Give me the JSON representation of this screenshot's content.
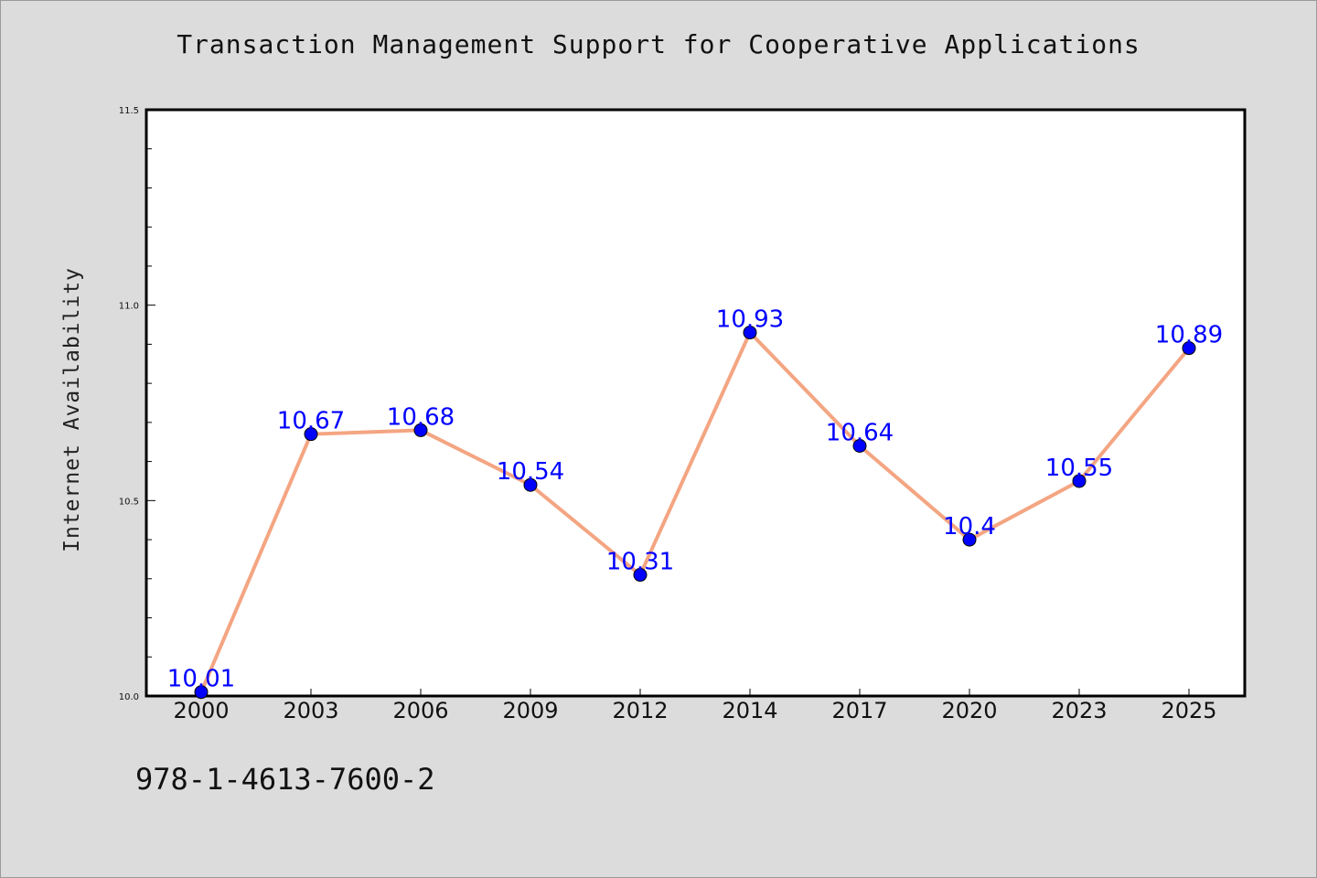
{
  "page": {
    "footer_text": "978-1-4613-7600-2"
  },
  "chart_data": {
    "type": "line",
    "title": "Transaction Management Support for Cooperative Applications",
    "xlabel": "",
    "ylabel": "Internet Availability",
    "categories": [
      "2000",
      "2003",
      "2006",
      "2009",
      "2012",
      "2014",
      "2017",
      "2020",
      "2023",
      "2025"
    ],
    "series": [
      {
        "values": [
          10.01,
          10.67,
          10.68,
          10.54,
          10.31,
          10.93,
          10.64,
          10.4,
          10.55,
          10.89
        ],
        "labels": [
          "10.01",
          "10.67",
          "10.68",
          "10.54",
          "10.31",
          "10.93",
          "10.64",
          "10.4",
          "10.55",
          "10.89"
        ]
      }
    ],
    "ylim": [
      10.0,
      11.5
    ],
    "yticks": [
      {
        "value": 10.0,
        "label": "10.0"
      },
      {
        "value": 10.5,
        "label": "10.5"
      },
      {
        "value": 11.0,
        "label": "11.0"
      },
      {
        "value": 11.5,
        "label": "11.5"
      }
    ],
    "y_minor_step": 0.1,
    "grid": false,
    "line_color": "#f4a582",
    "marker_color": "#0000ff",
    "label_color": "#0000ff",
    "plot_background": "#ffffff",
    "page_background": "#dcdcdc"
  }
}
